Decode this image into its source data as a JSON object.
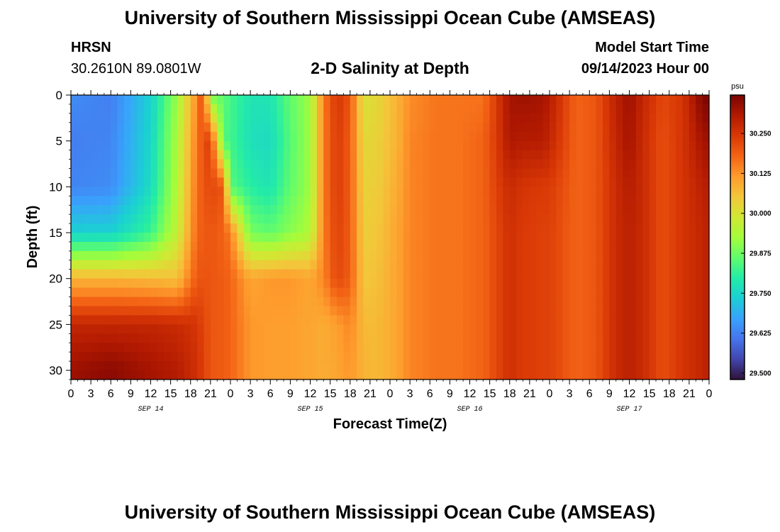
{
  "header": {
    "title": "University of Southern Mississippi Ocean Cube (AMSEAS)",
    "station": "HRSN",
    "coordinates": "30.2610N  89.0801W",
    "plot_title": "2-D Salinity at Depth",
    "model_start_label": "Model Start Time",
    "model_start_value": "09/14/2023 Hour 00"
  },
  "footer": {
    "title": "University of Southern Mississippi Ocean Cube (AMSEAS)"
  },
  "chart_data": {
    "type": "heatmap",
    "title": "2-D Salinity at Depth",
    "xlabel": "Forecast Time(Z)",
    "ylabel": "Depth (ft)",
    "x_hours_range": [
      0,
      96
    ],
    "x_tick_step_hours": 3,
    "x_tick_labels": [
      "0",
      "3",
      "6",
      "9",
      "12",
      "15",
      "18",
      "21",
      "0",
      "3",
      "6",
      "9",
      "12",
      "15",
      "18",
      "21",
      "0",
      "3",
      "6",
      "9",
      "12",
      "15",
      "18",
      "21",
      "0",
      "3",
      "6",
      "9",
      "12",
      "15",
      "18",
      "21",
      "0"
    ],
    "date_labels": [
      {
        "label": "SEP 14",
        "hour": 12
      },
      {
        "label": "SEP 15",
        "hour": 36
      },
      {
        "label": "SEP 16",
        "hour": 60
      },
      {
        "label": "SEP 17",
        "hour": 84
      }
    ],
    "ylim": [
      0,
      31
    ],
    "y_ticks": [
      "0",
      "5",
      "10",
      "15",
      "20",
      "25",
      "30"
    ],
    "y_tick_values": [
      0,
      5,
      10,
      15,
      20,
      25,
      30
    ],
    "colorbar": {
      "unit": "psu",
      "range": [
        29.48,
        30.37
      ],
      "ticks": [
        "29.500",
        "29.625",
        "29.750",
        "29.875",
        "30.000",
        "30.125",
        "30.250"
      ],
      "tick_values": [
        29.5,
        29.625,
        29.75,
        29.875,
        30.0,
        30.125,
        30.25
      ],
      "colors": [
        "#30123b",
        "#4145ab",
        "#4675ed",
        "#39a2fc",
        "#1bcfd4",
        "#24eca6",
        "#61fc6c",
        "#a4fc3b",
        "#d1e834",
        "#f3c63a",
        "#fe9b2d",
        "#f36315",
        "#d93806",
        "#b11901",
        "#7a0402"
      ]
    },
    "depth_levels_ft": [
      0,
      5,
      10,
      15,
      20,
      25,
      30
    ],
    "hours": [
      0,
      6,
      12,
      16,
      19,
      20,
      21,
      23,
      24,
      27,
      30,
      33,
      36,
      38,
      40,
      42,
      44,
      46,
      49,
      51,
      55,
      58,
      62,
      64,
      66,
      68,
      71,
      72,
      76,
      79,
      82,
      84,
      86,
      89,
      92,
      95,
      96
    ],
    "salinity_psu": [
      [
        29.64,
        29.62,
        29.74,
        29.92,
        30.14,
        30.23,
        29.87,
        29.86,
        29.83,
        29.78,
        29.78,
        29.86,
        29.92,
        30.15,
        30.25,
        30.2,
        30.0,
        30.02,
        30.08,
        30.13,
        30.16,
        30.16,
        30.16,
        30.24,
        30.32,
        30.33,
        30.32,
        30.3,
        30.18,
        30.2,
        30.29,
        30.33,
        30.28,
        30.22,
        30.25,
        30.36,
        30.37
      ],
      [
        29.62,
        29.63,
        29.75,
        29.94,
        30.16,
        30.21,
        30.24,
        29.84,
        29.83,
        29.77,
        29.76,
        29.85,
        29.92,
        30.15,
        30.24,
        30.19,
        30.02,
        30.03,
        30.08,
        30.14,
        30.16,
        30.16,
        30.18,
        30.24,
        30.31,
        30.3,
        30.3,
        30.28,
        30.18,
        30.2,
        30.28,
        30.32,
        30.27,
        30.21,
        30.25,
        30.32,
        30.33
      ],
      [
        29.63,
        29.64,
        29.76,
        29.95,
        30.17,
        30.2,
        30.22,
        30.2,
        29.85,
        29.8,
        29.78,
        29.86,
        29.92,
        30.15,
        30.24,
        30.19,
        30.03,
        30.04,
        30.09,
        30.14,
        30.16,
        30.16,
        30.18,
        30.23,
        30.27,
        30.25,
        30.24,
        30.24,
        30.18,
        30.2,
        30.27,
        30.3,
        30.27,
        30.21,
        30.25,
        30.29,
        30.3
      ],
      [
        29.74,
        29.74,
        29.82,
        29.97,
        30.18,
        30.19,
        30.2,
        30.18,
        30.15,
        29.88,
        29.86,
        29.9,
        29.94,
        30.15,
        30.23,
        30.19,
        30.04,
        30.05,
        30.1,
        30.14,
        30.16,
        30.16,
        30.18,
        30.22,
        30.26,
        30.24,
        30.23,
        30.23,
        30.18,
        30.2,
        30.27,
        30.29,
        30.27,
        30.21,
        30.25,
        30.28,
        30.29
      ],
      [
        30.08,
        30.08,
        30.07,
        30.06,
        30.2,
        30.2,
        30.2,
        30.19,
        30.18,
        30.1,
        30.12,
        30.12,
        30.1,
        30.14,
        30.22,
        30.19,
        30.05,
        30.06,
        30.1,
        30.14,
        30.16,
        30.16,
        30.18,
        30.22,
        30.26,
        30.24,
        30.23,
        30.23,
        30.18,
        30.2,
        30.27,
        30.29,
        30.27,
        30.21,
        30.25,
        30.28,
        30.29
      ],
      [
        30.28,
        30.28,
        30.28,
        30.27,
        30.25,
        30.22,
        30.2,
        30.19,
        30.18,
        30.12,
        30.11,
        30.11,
        30.1,
        30.09,
        30.11,
        30.14,
        30.07,
        30.07,
        30.1,
        30.14,
        30.16,
        30.16,
        30.18,
        30.22,
        30.26,
        30.24,
        30.23,
        30.23,
        30.18,
        30.2,
        30.27,
        30.29,
        30.27,
        30.21,
        30.25,
        30.28,
        30.29
      ],
      [
        30.33,
        30.35,
        30.32,
        30.3,
        30.26,
        30.23,
        30.2,
        30.19,
        30.18,
        30.12,
        30.11,
        30.11,
        30.1,
        30.09,
        30.1,
        30.12,
        30.08,
        30.07,
        30.1,
        30.14,
        30.16,
        30.16,
        30.18,
        30.22,
        30.26,
        30.24,
        30.23,
        30.23,
        30.18,
        30.2,
        30.27,
        30.29,
        30.27,
        30.21,
        30.25,
        30.28,
        30.29
      ]
    ]
  }
}
